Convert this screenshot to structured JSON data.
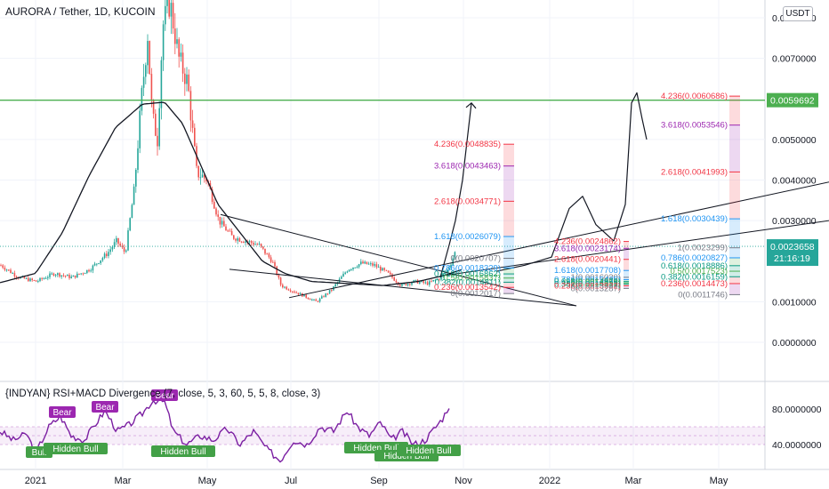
{
  "header": {
    "symbol_line": "AURORA / Tether, 1D, KUCOIN"
  },
  "currency_badge": "USDT",
  "colors": {
    "up": "#26a69a",
    "down": "#ef5350",
    "grid": "#f0f3fa",
    "green_line": "#4caf50",
    "fib_red": "#f23645",
    "fib_purple": "#9c27b0",
    "fib_blue": "#2196f3",
    "fib_green": "#089981",
    "rsi": "#7b1fa2"
  },
  "chart_data": [
    {
      "type": "candlestick",
      "title": "AURORA / Tether, 1D, KUCOIN",
      "x_tick_labels": [
        "2021",
        "Mar",
        "May",
        "Jul",
        "Sep",
        "Nov",
        "2022",
        "Mar",
        "May"
      ],
      "y_tick_labels": [
        "0.0080000",
        "0.0070000",
        "0.0050000",
        "0.0040000",
        "0.0030000",
        "0.0010000",
        "0.0000000"
      ],
      "ylim": [
        -0.0005,
        0.0085
      ],
      "price_keypoints": [
        {
          "x": 0,
          "y": 0.0019
        },
        {
          "x": 20,
          "y": 0.0016
        },
        {
          "x": 40,
          "y": 0.0015
        },
        {
          "x": 60,
          "y": 0.0017
        },
        {
          "x": 80,
          "y": 0.0016
        },
        {
          "x": 100,
          "y": 0.0018
        },
        {
          "x": 120,
          "y": 0.0022
        },
        {
          "x": 130,
          "y": 0.0025
        },
        {
          "x": 140,
          "y": 0.0022
        },
        {
          "x": 150,
          "y": 0.0038
        },
        {
          "x": 158,
          "y": 0.006
        },
        {
          "x": 165,
          "y": 0.0076
        },
        {
          "x": 170,
          "y": 0.0056
        },
        {
          "x": 176,
          "y": 0.005
        },
        {
          "x": 182,
          "y": 0.0078
        },
        {
          "x": 190,
          "y": 0.0084
        },
        {
          "x": 200,
          "y": 0.007
        },
        {
          "x": 210,
          "y": 0.0064
        },
        {
          "x": 220,
          "y": 0.0042
        },
        {
          "x": 232,
          "y": 0.004
        },
        {
          "x": 245,
          "y": 0.003
        },
        {
          "x": 260,
          "y": 0.0026
        },
        {
          "x": 275,
          "y": 0.0025
        },
        {
          "x": 290,
          "y": 0.0024
        },
        {
          "x": 305,
          "y": 0.002
        },
        {
          "x": 315,
          "y": 0.0014
        },
        {
          "x": 335,
          "y": 0.0012
        },
        {
          "x": 355,
          "y": 0.001
        },
        {
          "x": 372,
          "y": 0.0013
        },
        {
          "x": 390,
          "y": 0.0018
        },
        {
          "x": 405,
          "y": 0.00195
        },
        {
          "x": 420,
          "y": 0.0019
        },
        {
          "x": 435,
          "y": 0.0017
        },
        {
          "x": 450,
          "y": 0.0014
        },
        {
          "x": 465,
          "y": 0.0015
        },
        {
          "x": 480,
          "y": 0.00145
        },
        {
          "x": 495,
          "y": 0.0016
        },
        {
          "x": 505,
          "y": 0.0019
        },
        {
          "x": 512,
          "y": 0.0023
        }
      ],
      "moving_average_keypoints": [
        {
          "x": 0,
          "y": 0.00147
        },
        {
          "x": 40,
          "y": 0.0017
        },
        {
          "x": 70,
          "y": 0.0027
        },
        {
          "x": 100,
          "y": 0.0041
        },
        {
          "x": 130,
          "y": 0.0053
        },
        {
          "x": 160,
          "y": 0.00587
        },
        {
          "x": 185,
          "y": 0.00592
        },
        {
          "x": 205,
          "y": 0.0054
        },
        {
          "x": 225,
          "y": 0.0044
        },
        {
          "x": 245,
          "y": 0.0034
        },
        {
          "x": 270,
          "y": 0.0027
        },
        {
          "x": 295,
          "y": 0.002
        },
        {
          "x": 320,
          "y": 0.0017
        },
        {
          "x": 350,
          "y": 0.0015
        },
        {
          "x": 390,
          "y": 0.00145
        },
        {
          "x": 430,
          "y": 0.0014
        },
        {
          "x": 470,
          "y": 0.0015
        },
        {
          "x": 500,
          "y": 0.00165
        },
        {
          "x": 520,
          "y": 0.0018
        }
      ],
      "horizontal_line": {
        "value": 0.0059692,
        "label": "0.0059692"
      },
      "last_price": {
        "label": "0.0023658",
        "countdown": "21:16:19"
      },
      "trendlines": [
        {
          "x1": 248,
          "y1": 0.00315,
          "x2": 648,
          "y2": 0.0009
        },
        {
          "x1": 258,
          "y1": 0.0018,
          "x2": 648,
          "y2": 0.0009
        },
        {
          "x1": 325,
          "y1": 0.0011,
          "x2": 932,
          "y2": 0.00395
        },
        {
          "x1": 500,
          "y1": 0.00165,
          "x2": 932,
          "y2": 0.003
        }
      ],
      "projection_path": [
        {
          "x": 495,
          "y": 0.0016
        },
        {
          "x": 505,
          "y": 0.0024
        },
        {
          "x": 512,
          "y": 0.003
        },
        {
          "x": 520,
          "y": 0.004
        },
        {
          "x": 530,
          "y": 0.0059
        }
      ],
      "projection_path_2": [
        {
          "x": 558,
          "y": 0.00175
        },
        {
          "x": 590,
          "y": 0.0019
        },
        {
          "x": 620,
          "y": 0.0021
        },
        {
          "x": 640,
          "y": 0.0033
        },
        {
          "x": 655,
          "y": 0.0036
        },
        {
          "x": 670,
          "y": 0.0029
        },
        {
          "x": 690,
          "y": 0.0025
        },
        {
          "x": 703,
          "y": 0.0034
        },
        {
          "x": 710,
          "y": 0.0059
        },
        {
          "x": 716,
          "y": 0.00615
        },
        {
          "x": 722,
          "y": 0.0055
        },
        {
          "x": 727,
          "y": 0.005
        }
      ],
      "fib_set_1": [
        {
          "label": "4.236(0.0048835)",
          "value": 0.0048835,
          "color": "#f23645"
        },
        {
          "label": "3.618(0.0043463)",
          "value": 0.0043463,
          "color": "#9c27b0"
        },
        {
          "label": "2.618(0.0034771)",
          "value": 0.0034771,
          "color": "#f23645"
        },
        {
          "label": "1.618(0.0026079)",
          "value": 0.0026079,
          "color": "#2196f3"
        },
        {
          "label": "0(0.0020707)",
          "value": 0.0020707,
          "color": "#787b86"
        },
        {
          "label": "0.786(0.0018329)",
          "value": 0.0018329,
          "color": "#2196f3"
        },
        {
          "label": "0.618(0.0016862)",
          "value": 0.0016862,
          "color": "#089981"
        },
        {
          "label": "0.5(0.0015837)",
          "value": 0.0015837,
          "color": "#4caf50"
        },
        {
          "label": "0.382(0.0014811)",
          "value": 0.0014811,
          "color": "#089981"
        },
        {
          "label": "0.236(0.0013542)",
          "value": 0.0013542,
          "color": "#f23645"
        },
        {
          "label": "0(0.0012017)",
          "value": 0.0012017,
          "color": "#787b86"
        }
      ],
      "fib_set_2": [
        {
          "label": "4.236(0.0024862)",
          "value": 0.0024862,
          "color": "#f23645"
        },
        {
          "label": "3.618(0.0023174)",
          "value": 0.0023174,
          "color": "#9c27b0"
        },
        {
          "label": "2.618(0.0020441)",
          "value": 0.0020441,
          "color": "#f23645"
        },
        {
          "label": "1.618(0.0017708)",
          "value": 0.0017708,
          "color": "#2196f3"
        },
        {
          "label": "1(0.0016020)",
          "value": 0.001602,
          "color": "#787b86"
        },
        {
          "label": "0.786(0.0015435)",
          "value": 0.0015435,
          "color": "#2196f3"
        },
        {
          "label": "0.618(0.0014976)",
          "value": 0.0014976,
          "color": "#089981"
        },
        {
          "label": "0.5(0.0014653)",
          "value": 0.0014653,
          "color": "#4caf50"
        },
        {
          "label": "0.382(0.0014331)",
          "value": 0.0014331,
          "color": "#089981"
        },
        {
          "label": "0.236(0.0013932)",
          "value": 0.0013932,
          "color": "#f23645"
        },
        {
          "label": "0(0.0013287)",
          "value": 0.0013287,
          "color": "#787b86"
        }
      ],
      "fib_set_3": [
        {
          "label": "4.236(0.0060686)",
          "value": 0.0060686,
          "color": "#f23645"
        },
        {
          "label": "3.618(0.0053546)",
          "value": 0.0053546,
          "color": "#9c27b0"
        },
        {
          "label": "2.618(0.0041993)",
          "value": 0.0041993,
          "color": "#f23645"
        },
        {
          "label": "1.618(0.0030439)",
          "value": 0.0030439,
          "color": "#2196f3"
        },
        {
          "label": "1(0.0023299)",
          "value": 0.0023299,
          "color": "#787b86"
        },
        {
          "label": "0.786(0.0020827)",
          "value": 0.0020827,
          "color": "#2196f3"
        },
        {
          "label": "0.618(0.0018886)",
          "value": 0.0018886,
          "color": "#089981"
        },
        {
          "label": "0.5(0.0017523)",
          "value": 0.0017523,
          "color": "#4caf50"
        },
        {
          "label": "0.382(0.0016159)",
          "value": 0.0016159,
          "color": "#089981"
        },
        {
          "label": "0.236(0.0014473)",
          "value": 0.0014473,
          "color": "#f23645"
        },
        {
          "label": "0(0.0011746)",
          "value": 0.0011746,
          "color": "#787b86"
        }
      ]
    },
    {
      "type": "line",
      "title": "{INDYAN} RSI+MACD Divergence (7, close, 5, 3, 60, 5, 5, 8, close, 3)",
      "y_tick_labels": [
        "80.0000000",
        "40.0000000"
      ],
      "ylim": [
        20,
        100
      ],
      "band": [
        40,
        60
      ],
      "rsi_keypoints": [
        {
          "x": 0,
          "y": 55
        },
        {
          "x": 15,
          "y": 45
        },
        {
          "x": 30,
          "y": 52
        },
        {
          "x": 40,
          "y": 30
        },
        {
          "x": 55,
          "y": 60
        },
        {
          "x": 68,
          "y": 72
        },
        {
          "x": 80,
          "y": 50
        },
        {
          "x": 95,
          "y": 45
        },
        {
          "x": 105,
          "y": 60
        },
        {
          "x": 118,
          "y": 78
        },
        {
          "x": 132,
          "y": 55
        },
        {
          "x": 145,
          "y": 62
        },
        {
          "x": 160,
          "y": 75
        },
        {
          "x": 172,
          "y": 90
        },
        {
          "x": 185,
          "y": 88
        },
        {
          "x": 195,
          "y": 55
        },
        {
          "x": 210,
          "y": 40
        },
        {
          "x": 225,
          "y": 50
        },
        {
          "x": 240,
          "y": 45
        },
        {
          "x": 255,
          "y": 58
        },
        {
          "x": 270,
          "y": 40
        },
        {
          "x": 285,
          "y": 55
        },
        {
          "x": 300,
          "y": 35
        },
        {
          "x": 315,
          "y": 22
        },
        {
          "x": 330,
          "y": 45
        },
        {
          "x": 345,
          "y": 40
        },
        {
          "x": 360,
          "y": 60
        },
        {
          "x": 375,
          "y": 55
        },
        {
          "x": 390,
          "y": 78
        },
        {
          "x": 402,
          "y": 60
        },
        {
          "x": 415,
          "y": 50
        },
        {
          "x": 428,
          "y": 65
        },
        {
          "x": 440,
          "y": 45
        },
        {
          "x": 452,
          "y": 55
        },
        {
          "x": 465,
          "y": 40
        },
        {
          "x": 478,
          "y": 45
        },
        {
          "x": 490,
          "y": 60
        },
        {
          "x": 498,
          "y": 70
        },
        {
          "x": 505,
          "y": 84
        }
      ],
      "signals": [
        {
          "label": "Bull",
          "x": 44,
          "y": 31,
          "kind": "bull"
        },
        {
          "label": "Hidden Bull",
          "x": 85,
          "y": 35,
          "kind": "bull"
        },
        {
          "label": "Bear",
          "x": 70,
          "y": 76,
          "kind": "bear"
        },
        {
          "label": "Bear",
          "x": 118,
          "y": 82,
          "kind": "bear"
        },
        {
          "label": "Bear",
          "x": 185,
          "y": 95,
          "kind": "bear"
        },
        {
          "label": "Hidden Bull",
          "x": 206,
          "y": 32,
          "kind": "bull"
        },
        {
          "label": "Hidden Bull",
          "x": 423,
          "y": 36,
          "kind": "bull"
        },
        {
          "label": "Hidden Bull",
          "x": 457,
          "y": 27,
          "kind": "bull"
        },
        {
          "label": "Hidden Bull",
          "x": 482,
          "y": 33,
          "kind": "bull"
        }
      ]
    }
  ]
}
